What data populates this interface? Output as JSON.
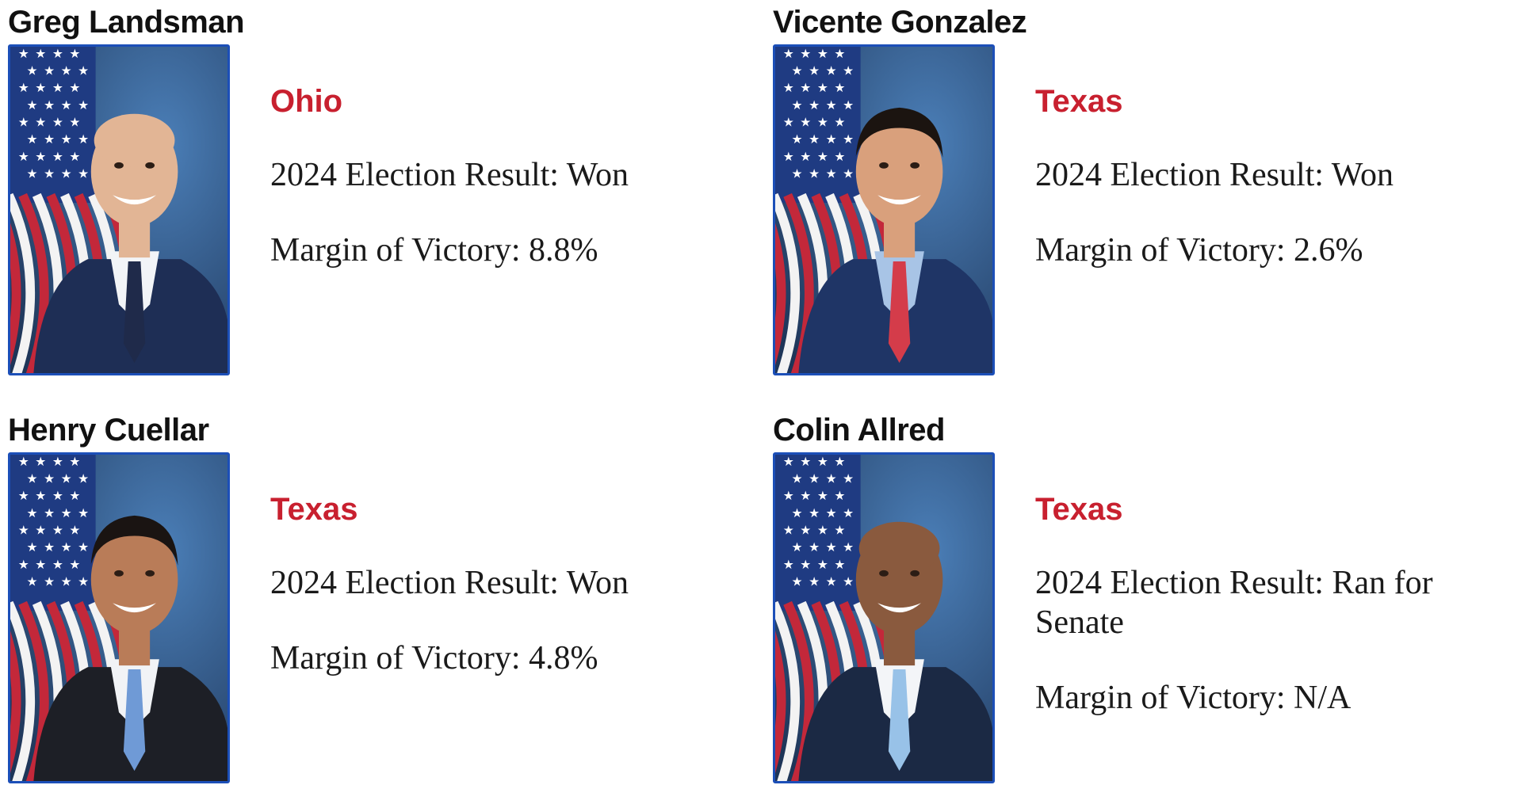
{
  "cards": [
    {
      "name": "Greg Landsman",
      "state": "Ohio",
      "result": "2024 Election Result: Won",
      "margin": "Margin of Victory: 8.8%",
      "photo": {
        "skin": "#e2b595",
        "hair": "#b08c6e",
        "tie": "#1f2a4a",
        "suit": "#1e2e55",
        "shirt": "#f2f4f7",
        "bg": "#4b7fb8",
        "bald": true
      }
    },
    {
      "name": "Vicente Gonzalez",
      "state": "Texas",
      "result": "2024 Election Result: Won",
      "margin": "Margin of Victory: 2.6%",
      "photo": {
        "skin": "#d9a07c",
        "hair": "#1b1410",
        "tie": "#d43c4a",
        "suit": "#1f3566",
        "shirt": "#a8c4e6",
        "bg": "#6f95c9",
        "bald": false
      }
    },
    {
      "name": "Henry Cuellar",
      "state": "Texas",
      "result": "2024 Election Result: Won",
      "margin": "Margin of Victory: 4.8%",
      "photo": {
        "skin": "#b97c58",
        "hair": "#1a1412",
        "tie": "#6f9ad6",
        "suit": "#1d1f26",
        "shirt": "#f1f3f6",
        "bg": "#3a4f72",
        "bald": false
      }
    },
    {
      "name": "Colin Allred",
      "state": "Texas",
      "result": "2024 Election Result: Ran for Senate",
      "margin": "Margin of Victory: N/A",
      "photo": {
        "skin": "#8a5a3e",
        "hair": "#6b4630",
        "tie": "#98c2e8",
        "suit": "#1b2944",
        "shirt": "#f3f5f8",
        "bg": "#5c80b4",
        "bald": true
      }
    }
  ]
}
